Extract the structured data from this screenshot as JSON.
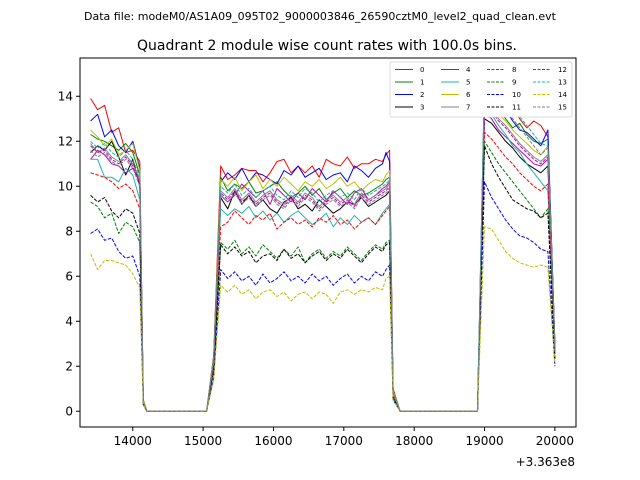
{
  "chart_data": {
    "type": "line",
    "suptitle": "Data file: modeM0/AS1A09_095T02_9000003846_26590cztM0_level2_quad_clean.evt",
    "title": "Quadrant 2 module wise count rates with 100.0s bins.",
    "x_offset_label": "+3.363e8",
    "xlim": [
      13250,
      20300
    ],
    "ylim": [
      -0.7,
      15.7
    ],
    "xticks": [
      14000,
      15000,
      16000,
      17000,
      18000,
      19000,
      20000
    ],
    "yticks": [
      0,
      2,
      4,
      6,
      8,
      10,
      12,
      14
    ],
    "x": [
      13400,
      13500,
      13600,
      13700,
      13800,
      13900,
      14000,
      14100,
      14150,
      14200,
      14300,
      14400,
      14500,
      14600,
      14700,
      14800,
      14900,
      15000,
      15050,
      15150,
      15250,
      15350,
      15450,
      15550,
      15650,
      15750,
      15850,
      15950,
      16050,
      16150,
      16250,
      16350,
      16450,
      16550,
      16650,
      16750,
      16850,
      16950,
      17050,
      17150,
      17250,
      17350,
      17450,
      17550,
      17600,
      17650,
      17700,
      17800,
      17900,
      18000,
      18100,
      18200,
      18300,
      18400,
      18500,
      18600,
      18700,
      18800,
      18900,
      19000,
      19100,
      19200,
      19300,
      19400,
      19500,
      19600,
      19700,
      19800,
      19900,
      20000
    ],
    "legend_position": "top-right",
    "series": [
      {
        "name": "0",
        "color": "#ff0000",
        "dash": "solid",
        "values": [
          13.9,
          13.4,
          13.6,
          12.4,
          12.6,
          11.5,
          11.6,
          11.1,
          0.5,
          0,
          0,
          0,
          0,
          0,
          0,
          0,
          0,
          0,
          0,
          2.5,
          10.9,
          10.3,
          10.5,
          10.8,
          10.7,
          10.7,
          10.2,
          10.6,
          11.1,
          11.2,
          10.6,
          10.9,
          10.6,
          10.9,
          10.4,
          11.2,
          11.0,
          10.9,
          11.3,
          10.8,
          11.0,
          11.0,
          11.2,
          11.1,
          11.4,
          11.6,
          1.0,
          0,
          0,
          0,
          0,
          0,
          0,
          0,
          0,
          0,
          0,
          0,
          0,
          13.8,
          14.3,
          14.0,
          13.6,
          13.5,
          13.0,
          12.6,
          12.9,
          12.7,
          12.2,
          3.0
        ]
      },
      {
        "name": "1",
        "color": "#008000",
        "dash": "solid",
        "values": [
          12.3,
          12.1,
          12.0,
          11.8,
          11.6,
          11.9,
          11.5,
          10.5,
          0.5,
          0,
          0,
          0,
          0,
          0,
          0,
          0,
          0,
          0,
          0,
          2.3,
          10.4,
          9.8,
          10.1,
          9.9,
          10.2,
          9.7,
          9.8,
          10.0,
          10.2,
          9.8,
          9.5,
          9.7,
          10.0,
          9.6,
          9.9,
          9.4,
          9.7,
          9.9,
          9.5,
          9.8,
          9.6,
          9.7,
          9.9,
          10.1,
          10.3,
          10.4,
          0.9,
          0,
          0,
          0,
          0,
          0,
          0,
          0,
          0,
          0,
          0,
          0,
          0,
          14.2,
          13.8,
          13.5,
          13.0,
          12.6,
          12.8,
          12.3,
          12.0,
          11.9,
          12.1,
          2.9
        ]
      },
      {
        "name": "2",
        "color": "#0000ff",
        "dash": "solid",
        "values": [
          12.9,
          13.2,
          12.2,
          12.5,
          11.8,
          11.5,
          12.0,
          10.8,
          0.5,
          0,
          0,
          0,
          0,
          0,
          0,
          0,
          0,
          0,
          0,
          2.4,
          10.2,
          10.6,
          10.3,
          10.8,
          10.2,
          10.6,
          10.5,
          10.3,
          10.1,
          10.7,
          10.5,
          10.9,
          10.4,
          10.6,
          10.8,
          10.3,
          10.5,
          10.6,
          10.2,
          10.9,
          10.7,
          10.4,
          10.8,
          11.0,
          11.5,
          11.1,
          0.9,
          0,
          0,
          0,
          0,
          0,
          0,
          0,
          0,
          0,
          0,
          0,
          0,
          14.6,
          14.1,
          13.7,
          13.4,
          12.9,
          12.5,
          12.4,
          12.1,
          11.8,
          12.5,
          3.0
        ]
      },
      {
        "name": "3",
        "color": "#000000",
        "dash": "solid",
        "values": [
          11.5,
          11.8,
          11.6,
          12.0,
          11.3,
          10.5,
          11.2,
          10.0,
          0.4,
          0,
          0,
          0,
          0,
          0,
          0,
          0,
          0,
          0,
          0,
          2.2,
          9.5,
          9.0,
          9.8,
          9.2,
          9.6,
          9.1,
          9.4,
          9.0,
          8.8,
          9.3,
          9.5,
          9.0,
          9.2,
          8.9,
          9.4,
          9.1,
          8.8,
          9.0,
          9.3,
          9.2,
          9.5,
          9.1,
          9.3,
          9.5,
          9.6,
          9.8,
          0.8,
          0,
          0,
          0,
          0,
          0,
          0,
          0,
          0,
          0,
          0,
          0,
          0,
          13.0,
          12.8,
          12.4,
          12.0,
          11.7,
          11.3,
          11.0,
          10.8,
          10.6,
          10.9,
          2.7
        ]
      },
      {
        "name": "4",
        "color": "#bf00bf",
        "dash": "solid",
        "values": [
          11.2,
          11.6,
          11.4,
          11.0,
          10.9,
          10.6,
          10.8,
          10.2,
          0.4,
          0,
          0,
          0,
          0,
          0,
          0,
          0,
          0,
          0,
          0,
          2.3,
          9.6,
          9.3,
          9.6,
          10.1,
          9.8,
          9.5,
          9.8,
          9.2,
          9.9,
          9.6,
          9.3,
          9.7,
          9.4,
          9.9,
          9.6,
          9.3,
          9.8,
          9.5,
          9.2,
          9.7,
          9.9,
          9.4,
          9.6,
          9.9,
          10.0,
          10.2,
          0.8,
          0,
          0,
          0,
          0,
          0,
          0,
          0,
          0,
          0,
          0,
          0,
          0,
          13.3,
          13.0,
          12.5,
          12.2,
          11.9,
          11.6,
          11.3,
          11.0,
          10.9,
          11.2,
          2.8
        ]
      },
      {
        "name": "5",
        "color": "#20b2aa",
        "dash": "solid",
        "values": [
          11.2,
          11.2,
          10.4,
          10.4,
          10.2,
          10.8,
          10.5,
          9.4,
          0.4,
          0,
          0,
          0,
          0,
          0,
          0,
          0,
          0,
          0,
          0,
          2.1,
          9.0,
          8.7,
          9.0,
          8.8,
          9.1,
          8.6,
          8.9,
          8.5,
          8.8,
          8.4,
          8.7,
          8.9,
          8.6,
          8.3,
          8.5,
          8.8,
          8.2,
          8.6,
          8.3,
          8.7,
          8.4,
          8.6,
          8.3,
          8.8,
          9.0,
          9.2,
          0.7,
          0,
          0,
          0,
          0,
          0,
          0,
          0,
          0,
          0,
          0,
          0,
          0,
          13.5,
          13.2,
          12.7,
          12.3,
          11.8,
          11.5,
          11.0,
          10.6,
          10.2,
          9.8,
          2.6
        ]
      },
      {
        "name": "6",
        "color": "#bfbf00",
        "dash": "solid",
        "values": [
          12.5,
          12.2,
          11.8,
          12.1,
          11.4,
          11.6,
          11.9,
          10.7,
          0.5,
          0,
          0,
          0,
          0,
          0,
          0,
          0,
          0,
          0,
          0,
          2.4,
          10.3,
          10.0,
          10.4,
          9.8,
          10.2,
          10.5,
          9.9,
          10.3,
          10.0,
          10.4,
          10.1,
          9.8,
          10.2,
          10.0,
          10.3,
          9.9,
          10.1,
          10.4,
          10.0,
          10.2,
          9.8,
          10.1,
          10.3,
          10.2,
          10.5,
          10.7,
          0.9,
          0,
          0,
          0,
          0,
          0,
          0,
          0,
          0,
          0,
          0,
          0,
          0,
          14.0,
          13.6,
          13.2,
          12.9,
          12.5,
          12.2,
          11.9,
          11.6,
          11.4,
          11.8,
          2.9
        ]
      },
      {
        "name": "7",
        "color": "#808080",
        "dash": "solid",
        "values": [
          11.9,
          11.5,
          11.7,
          11.3,
          11.1,
          11.4,
          11.0,
          10.3,
          0.4,
          0,
          0,
          0,
          0,
          0,
          0,
          0,
          0,
          0,
          0,
          2.2,
          9.8,
          9.5,
          9.9,
          9.4,
          9.7,
          9.3,
          9.6,
          9.8,
          9.4,
          9.2,
          9.6,
          9.3,
          9.7,
          9.5,
          9.1,
          9.4,
          9.6,
          9.3,
          9.5,
          9.2,
          9.7,
          9.4,
          9.6,
          9.8,
          9.9,
          10.1,
          0.8,
          0,
          0,
          0,
          0,
          0,
          0,
          0,
          0,
          0,
          0,
          0,
          0,
          13.7,
          13.4,
          13.0,
          12.7,
          12.3,
          11.9,
          11.6,
          11.3,
          11.1,
          11.4,
          2.8
        ]
      },
      {
        "name": "8",
        "color": "#ff0000",
        "dash": "dashed",
        "values": [
          10.6,
          10.5,
          10.4,
          10.2,
          9.9,
          10.1,
          9.8,
          9.0,
          0.4,
          0,
          0,
          0,
          0,
          0,
          0,
          0,
          0,
          0,
          0,
          2.0,
          8.2,
          8.4,
          8.9,
          8.6,
          8.3,
          8.7,
          8.5,
          8.8,
          8.1,
          8.4,
          8.6,
          8.3,
          8.5,
          8.2,
          8.6,
          8.4,
          8.7,
          8.3,
          8.5,
          8.1,
          8.4,
          8.6,
          8.3,
          8.7,
          8.9,
          9.1,
          0.7,
          0,
          0,
          0,
          0,
          0,
          0,
          0,
          0,
          0,
          0,
          0,
          0,
          12.4,
          12.1,
          11.7,
          11.3,
          11.0,
          10.6,
          10.3,
          10.0,
          9.8,
          10.1,
          2.5
        ]
      },
      {
        "name": "9",
        "color": "#008000",
        "dash": "dashed",
        "values": [
          9.3,
          9.1,
          8.6,
          8.8,
          7.9,
          8.4,
          8.2,
          7.5,
          0.3,
          0,
          0,
          0,
          0,
          0,
          0,
          0,
          0,
          0,
          0,
          1.8,
          7.5,
          7.2,
          7.6,
          7.0,
          7.3,
          6.9,
          7.4,
          7.1,
          6.8,
          7.2,
          6.9,
          7.3,
          6.6,
          7.0,
          7.2,
          6.8,
          7.1,
          6.9,
          7.3,
          7.0,
          6.7,
          7.1,
          7.4,
          7.2,
          7.5,
          7.6,
          0.6,
          0,
          0,
          0,
          0,
          0,
          0,
          0,
          0,
          0,
          0,
          0,
          0,
          12.0,
          11.5,
          11.0,
          10.6,
          10.2,
          9.8,
          9.4,
          9.0,
          8.6,
          9.0,
          2.3
        ]
      },
      {
        "name": "10",
        "color": "#0000ff",
        "dash": "dashed",
        "values": [
          7.9,
          8.1,
          7.6,
          7.7,
          7.1,
          6.8,
          6.9,
          6.0,
          0.3,
          0,
          0,
          0,
          0,
          0,
          0,
          0,
          0,
          0,
          0,
          1.5,
          6.3,
          5.9,
          6.2,
          5.8,
          6.0,
          5.6,
          6.1,
          5.7,
          5.9,
          6.2,
          5.8,
          6.0,
          5.7,
          6.1,
          5.8,
          6.0,
          5.6,
          5.9,
          6.1,
          5.7,
          6.0,
          5.8,
          6.2,
          6.0,
          6.3,
          6.5,
          0.5,
          0,
          0,
          0,
          0,
          0,
          0,
          0,
          0,
          0,
          0,
          0,
          0,
          10.2,
          9.5,
          9.0,
          8.5,
          8.1,
          7.8,
          7.7,
          7.5,
          7.2,
          7.1,
          2.0
        ]
      },
      {
        "name": "11",
        "color": "#000000",
        "dash": "dashed",
        "values": [
          9.6,
          9.3,
          9.5,
          8.9,
          8.6,
          9.0,
          8.8,
          7.9,
          0.3,
          0,
          0,
          0,
          0,
          0,
          0,
          0,
          0,
          0,
          0,
          1.9,
          7.4,
          7.0,
          7.3,
          6.9,
          7.1,
          6.6,
          6.9,
          7.0,
          6.7,
          7.2,
          6.8,
          7.0,
          6.6,
          6.9,
          7.1,
          6.7,
          7.0,
          6.8,
          7.2,
          6.9,
          6.6,
          7.0,
          7.3,
          7.1,
          7.4,
          7.5,
          0.6,
          0,
          0,
          0,
          0,
          0,
          0,
          0,
          0,
          0,
          0,
          0,
          0,
          11.8,
          11.0,
          10.4,
          9.9,
          9.4,
          9.2,
          9.0,
          8.9,
          8.6,
          8.8,
          2.3
        ]
      },
      {
        "name": "12",
        "color": "#bf00bf",
        "dash": "dashed",
        "values": [
          11.8,
          11.5,
          11.6,
          11.2,
          11.0,
          11.3,
          10.9,
          10.1,
          0.4,
          0,
          0,
          0,
          0,
          0,
          0,
          0,
          0,
          0,
          0,
          2.2,
          9.7,
          9.4,
          9.8,
          9.3,
          9.6,
          9.2,
          9.5,
          9.7,
          9.3,
          9.1,
          9.5,
          9.2,
          9.6,
          9.4,
          9.0,
          9.3,
          9.5,
          9.2,
          9.4,
          9.1,
          9.6,
          9.3,
          9.5,
          9.7,
          9.8,
          10.0,
          0.8,
          0,
          0,
          0,
          0,
          0,
          0,
          0,
          0,
          0,
          0,
          0,
          0,
          13.6,
          13.3,
          12.9,
          12.6,
          12.2,
          11.8,
          11.5,
          11.2,
          11.0,
          11.3,
          2.8
        ]
      },
      {
        "name": "13",
        "color": "#20b2aa",
        "dash": "dashed",
        "values": [
          12.0,
          11.7,
          11.9,
          11.5,
          11.3,
          11.6,
          11.2,
          10.4,
          0.4,
          0,
          0,
          0,
          0,
          0,
          0,
          0,
          0,
          0,
          0,
          2.3,
          10.0,
          9.7,
          10.1,
          9.6,
          9.9,
          9.5,
          9.8,
          10.0,
          9.6,
          9.4,
          9.8,
          9.5,
          9.9,
          9.7,
          9.3,
          9.6,
          9.8,
          9.5,
          9.7,
          9.4,
          9.9,
          9.6,
          9.8,
          10.0,
          10.1,
          10.3,
          0.8,
          0,
          0,
          0,
          0,
          0,
          0,
          0,
          0,
          0,
          0,
          0,
          0,
          14.9,
          14.6,
          14.3,
          13.9,
          13.5,
          13.1,
          12.7,
          12.3,
          11.9,
          11.8,
          2.9
        ]
      },
      {
        "name": "14",
        "color": "#bfbf00",
        "dash": "dashed",
        "values": [
          7.0,
          6.3,
          6.7,
          6.7,
          6.6,
          6.5,
          6.1,
          5.5,
          0.3,
          0,
          0,
          0,
          0,
          0,
          0,
          0,
          0,
          0,
          0,
          1.4,
          5.6,
          5.3,
          5.6,
          5.2,
          5.4,
          5.0,
          5.3,
          5.4,
          5.1,
          5.3,
          4.9,
          5.2,
          5.3,
          5.0,
          5.3,
          5.2,
          4.8,
          5.3,
          5.4,
          5.2,
          5.4,
          5.3,
          5.5,
          5.4,
          5.9,
          6.0,
          0.5,
          0,
          0,
          0,
          0,
          0,
          0,
          0,
          0,
          0,
          0,
          0,
          0,
          8.2,
          8.1,
          7.6,
          7.1,
          6.8,
          6.6,
          6.5,
          6.4,
          6.5,
          6.4,
          2.1
        ]
      },
      {
        "name": "15",
        "color": "#808080",
        "dash": "dashed",
        "values": [
          11.6,
          11.3,
          11.5,
          11.1,
          10.9,
          11.2,
          10.8,
          10.0,
          0.4,
          0,
          0,
          0,
          0,
          0,
          0,
          0,
          0,
          0,
          0,
          2.2,
          9.6,
          9.3,
          9.7,
          9.2,
          9.5,
          9.1,
          9.4,
          9.6,
          9.2,
          9.0,
          9.4,
          9.1,
          9.5,
          9.3,
          8.9,
          9.2,
          9.4,
          9.1,
          9.3,
          9.0,
          9.5,
          9.2,
          9.4,
          9.6,
          9.7,
          9.9,
          0.8,
          0,
          0,
          0,
          0,
          0,
          0,
          0,
          0,
          0,
          0,
          0,
          0,
          14.7,
          14.3,
          13.9,
          13.4,
          13.0,
          12.6,
          12.2,
          11.8,
          11.4,
          11.7,
          2.8
        ]
      }
    ]
  }
}
